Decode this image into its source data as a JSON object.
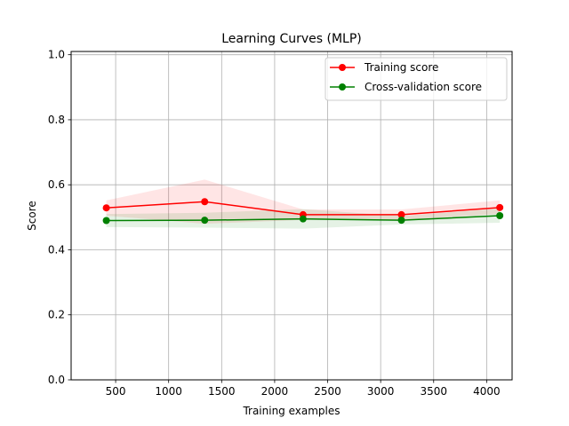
{
  "chart_data": {
    "type": "line",
    "title": "Learning Curves (MLP)",
    "xlabel": "Training examples",
    "ylabel": "Score",
    "xlim": [
      80,
      4240
    ],
    "ylim": [
      0.0,
      1.01
    ],
    "x_ticks": [
      500,
      1000,
      1500,
      2000,
      2500,
      3000,
      3500,
      4000
    ],
    "y_ticks": [
      0.0,
      0.2,
      0.4,
      0.6,
      0.8,
      1.0
    ],
    "x_tick_labels": [
      "500",
      "1000",
      "1500",
      "2000",
      "2500",
      "3000",
      "3500",
      "4000"
    ],
    "y_tick_labels": [
      "0.0",
      "0.2",
      "0.4",
      "0.6",
      "0.8",
      "1.0"
    ],
    "grid": true,
    "legend_position": "top-right",
    "x": [
      412,
      1340,
      2268,
      3196,
      4124
    ],
    "series": [
      {
        "name": "Training score",
        "color": "#ff0000",
        "fill_color": "#ff0000",
        "values": [
          0.529,
          0.548,
          0.508,
          0.508,
          0.53
        ],
        "band_lower": [
          0.505,
          0.48,
          0.492,
          0.492,
          0.51
        ],
        "band_upper": [
          0.552,
          0.616,
          0.524,
          0.524,
          0.552
        ]
      },
      {
        "name": "Cross-validation score",
        "color": "#008000",
        "fill_color": "#008000",
        "values": [
          0.49,
          0.491,
          0.495,
          0.491,
          0.505
        ],
        "band_lower": [
          0.47,
          0.468,
          0.465,
          0.478,
          0.483
        ],
        "band_upper": [
          0.51,
          0.514,
          0.525,
          0.504,
          0.527
        ]
      }
    ]
  }
}
